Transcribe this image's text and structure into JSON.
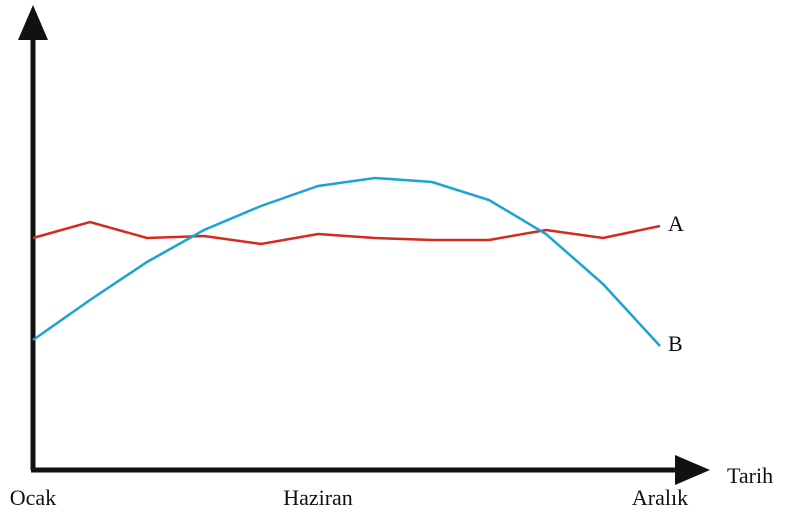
{
  "chart_data": {
    "type": "line",
    "categories": [
      "Ocak",
      null,
      null,
      null,
      null,
      "Haziran",
      null,
      null,
      null,
      null,
      null,
      "Aralık"
    ],
    "x_label": "Tarih",
    "ylim": [
      0,
      100
    ],
    "series": [
      {
        "name": "A",
        "color": "#d42a1f",
        "values": [
          58,
          62,
          58,
          58.5,
          56.5,
          59,
          58,
          57.5,
          57.5,
          60,
          58,
          61
        ]
      },
      {
        "name": "B",
        "color": "#1aa3d4",
        "values": [
          32.5,
          42.5,
          52,
          60,
          66,
          71,
          73,
          72,
          67.5,
          59,
          46.5,
          31
        ]
      }
    ]
  }
}
